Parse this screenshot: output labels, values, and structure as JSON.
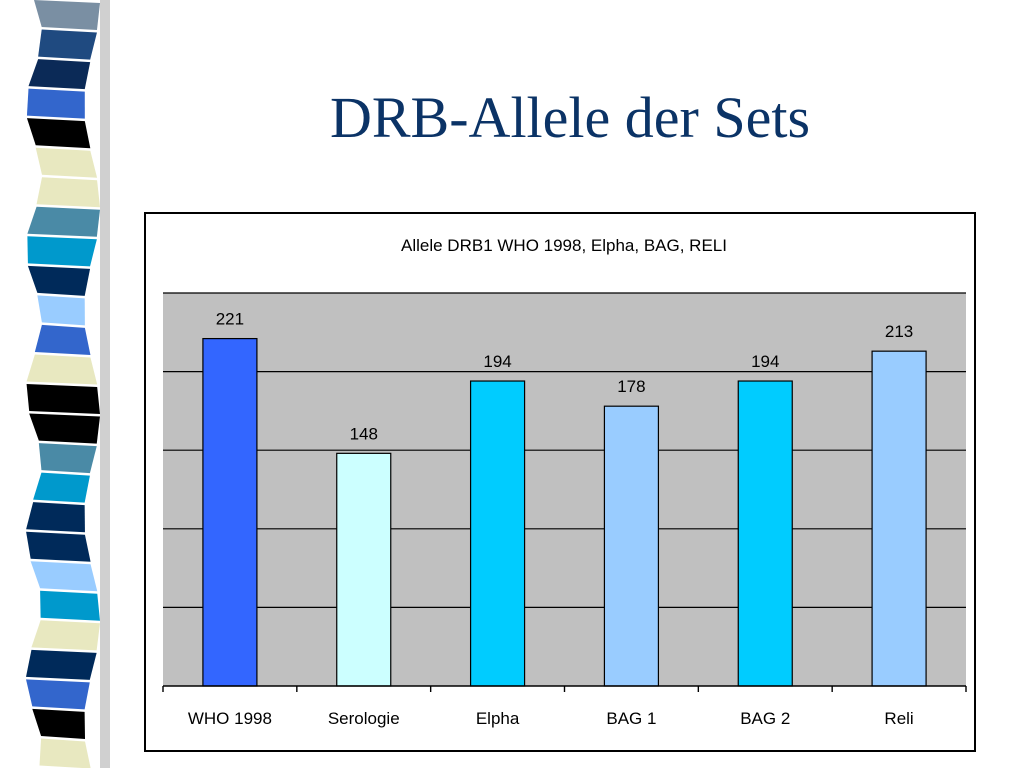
{
  "slide": {
    "title": "DRB-Allele der Sets"
  },
  "chart_data": {
    "type": "bar",
    "title": "Allele DRB1 WHO 1998, Elpha, BAG, RELI",
    "xlabel": "",
    "ylabel": "",
    "categories": [
      "WHO 1998",
      "Serologie",
      "Elpha",
      "BAG 1",
      "BAG 2",
      "Reli"
    ],
    "values": [
      221,
      148,
      194,
      178,
      194,
      213
    ],
    "bar_colors": [
      "#3366ff",
      "#ccffff",
      "#00ccff",
      "#99ccff",
      "#00ccff",
      "#99ccff"
    ],
    "ylim": [
      0,
      250
    ],
    "y_gridlines": [
      50,
      100,
      150,
      200,
      250
    ],
    "grid": true,
    "plot_background": "#c0c0c0",
    "data_labels": true,
    "legend": "none"
  },
  "colors": {
    "title": "#0b3366",
    "stripe": [
      "#7a8fa3",
      "#1f4a80",
      "#0b2a57",
      "#3366cc",
      "#000000",
      "#e8e8c0",
      "#e8e8c0",
      "#4a8aa6",
      "#0099cc",
      "#002a5a",
      "#99ccff",
      "#3366cc",
      "#e8e8c0",
      "#000000",
      "#000000",
      "#4a8aa6",
      "#0099cc",
      "#002a5a",
      "#002a5a",
      "#99ccff",
      "#0099cc",
      "#e8e8c0",
      "#002a5a",
      "#3366cc",
      "#000000",
      "#e8e8c0"
    ]
  }
}
